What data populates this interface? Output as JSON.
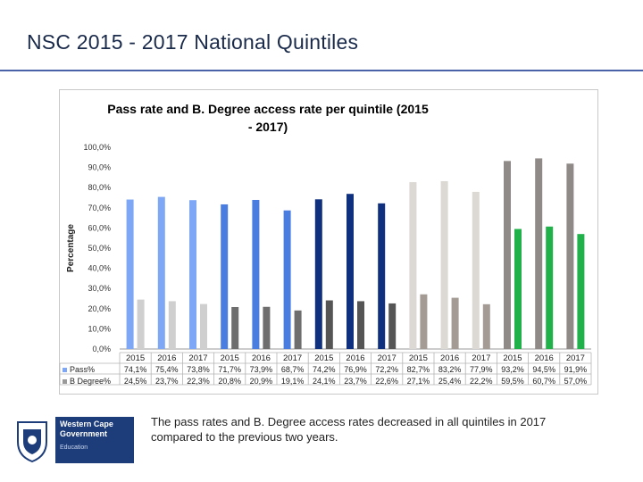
{
  "slide": {
    "title": "NSC 2015 - 2017 National Quintiles",
    "caption": "The pass rates and B. Degree access rates decreased in all quintiles in 2017 compared to the previous two years."
  },
  "logo": {
    "line1": "Western Cape",
    "line2": "Government",
    "line3": "Education"
  },
  "colors": {
    "pass": [
      "#7ea7f5",
      "#7ea7f5",
      "#7ea7f5",
      "#4a7de0",
      "#4a7de0",
      "#4a7de0",
      "#1f4fc7",
      "#1f4fc7",
      "#1f4fc7",
      "#dcd8d3",
      "#dcd8d3",
      "#dcd8d3",
      "#8f8a87",
      "#8f8a87",
      "#8f8a87"
    ],
    "bdeg": [
      "#cfcfcf",
      "#cfcfcf",
      "#cfcfcf",
      "#6e6e6e",
      "#6e6e6e",
      "#6e6e6e",
      "#555555",
      "#555555",
      "#555555",
      "#a39b94",
      "#a39b94",
      "#a39b94",
      "#21b14b",
      "#21b14b",
      "#21b14b"
    ],
    "pass_q3_override": "#0f2f7f"
  },
  "chart_data": {
    "type": "bar",
    "title": "Pass rate and B. Degree access rate per quintile (2015 - 2017)",
    "ylabel": "Percentage",
    "ylim": [
      0,
      100
    ],
    "yticks": [
      "0,0%",
      "10,0%",
      "20,0%",
      "30,0%",
      "40,0%",
      "50,0%",
      "60,0%",
      "70,0%",
      "80,0%",
      "90,0%",
      "100,0%"
    ],
    "categories": [
      "2015",
      "2016",
      "2017",
      "2015",
      "2016",
      "2017",
      "2015",
      "2016",
      "2017",
      "2015",
      "2016",
      "2017",
      "2015",
      "2016",
      "2017"
    ],
    "series": [
      {
        "name": "Pass%",
        "values": [
          74.1,
          75.4,
          73.8,
          71.7,
          73.9,
          68.7,
          74.2,
          76.9,
          72.2,
          82.7,
          83.2,
          77.9,
          93.2,
          94.5,
          91.9
        ],
        "labels": [
          "74,1%",
          "75,4%",
          "73,8%",
          "71,7%",
          "73,9%",
          "68,7%",
          "74,2%",
          "76,9%",
          "72,2%",
          "82,7%",
          "83,2%",
          "77,9%",
          "93,2%",
          "94,5%",
          "91,9%"
        ]
      },
      {
        "name": "B Degree%",
        "values": [
          24.5,
          23.7,
          22.3,
          20.8,
          20.9,
          19.1,
          24.1,
          23.7,
          22.6,
          27.1,
          25.4,
          22.2,
          59.5,
          60.7,
          57.0
        ],
        "labels": [
          "24,5%",
          "23,7%",
          "22,3%",
          "20,8%",
          "20,9%",
          "19,1%",
          "24,1%",
          "23,7%",
          "22,6%",
          "27,1%",
          "25,4%",
          "22,2%",
          "59,5%",
          "60,7%",
          "57,0%"
        ]
      }
    ]
  }
}
